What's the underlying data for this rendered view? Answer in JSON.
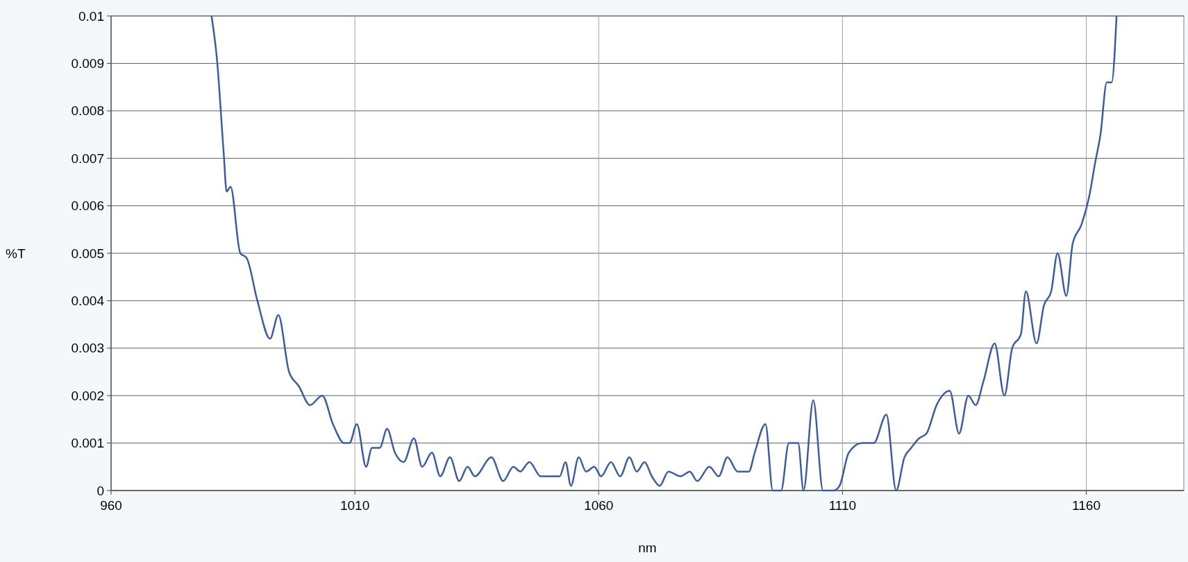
{
  "chart_data": {
    "type": "line",
    "xlabel": "nm",
    "ylabel": "%T",
    "xlim": [
      960,
      1180
    ],
    "xticks": [
      960,
      1010,
      1060,
      1110,
      1160
    ],
    "ylim": [
      0,
      0.01
    ],
    "yticks": [
      0,
      0.001,
      0.002,
      0.003,
      0.004,
      0.005,
      0.006,
      0.007,
      0.008,
      0.009,
      0.01
    ],
    "grid": true,
    "marker": "none",
    "line_style": "solid",
    "series": [
      {
        "color": "#3b5ca3",
        "x": [
          980.6,
          981.7,
          983.1,
          983.7,
          984.5,
          986.5,
          987.8,
          990,
          992.6,
          994.3,
          996.5,
          998.5,
          1000.8,
          1003.3,
          1005.5,
          1007.8,
          1008.9,
          1010.4,
          1012.3,
          1013.5,
          1015.1,
          1016.6,
          1018.2,
          1020,
          1022.1,
          1023.8,
          1025.8,
          1027.5,
          1029.5,
          1031.4,
          1033.1,
          1034.6,
          1038,
          1040.4,
          1042.5,
          1043.9,
          1045.8,
          1048.1,
          1052,
          1053.2,
          1054.3,
          1055.9,
          1057.4,
          1059.1,
          1060.5,
          1062.5,
          1064.4,
          1066.3,
          1067.8,
          1069.4,
          1070.9,
          1072.5,
          1074.3,
          1076.8,
          1078.7,
          1080.2,
          1082.7,
          1084.6,
          1086.4,
          1088.5,
          1090.8,
          1092,
          1094.2,
          1095.7,
          1097.4,
          1099,
          1100.9,
          1102,
          1104,
          1106,
          1108.2,
          1109.4,
          1111.3,
          1114,
          1116.4,
          1119,
          1121,
          1122.7,
          1124.1,
          1125.7,
          1127.2,
          1129.3,
          1132,
          1133.9,
          1135.8,
          1137.3,
          1138.9,
          1141.2,
          1143.2,
          1144.8,
          1146.6,
          1147.6,
          1149.8,
          1151.3,
          1152.8,
          1154.1,
          1155.9,
          1157.2,
          1159,
          1160.6,
          1161.8,
          1162.9,
          1164.2,
          1165.2,
          1166.2
        ],
        "values": [
          0.01,
          0.0091,
          0.0071,
          0.0063,
          0.0064,
          0.005,
          0.0049,
          0.004,
          0.0032,
          0.0037,
          0.0025,
          0.0022,
          0.0018,
          0.002,
          0.0014,
          0.001,
          0.001,
          0.0014,
          0.0005,
          0.0009,
          0.0009,
          0.0013,
          0.0008,
          0.0006,
          0.0011,
          0.0005,
          0.0008,
          0.0003,
          0.0007,
          0.0002,
          0.0005,
          0.0003,
          0.0007,
          0.0002,
          0.0005,
          0.0004,
          0.0006,
          0.0003,
          0.0003,
          0.0006,
          0.0001,
          0.0007,
          0.0004,
          0.0005,
          0.0003,
          0.0006,
          0.0003,
          0.0007,
          0.0004,
          0.0006,
          0.0003,
          0.0001,
          0.0004,
          0.0003,
          0.0004,
          0.0002,
          0.0005,
          0.0003,
          0.0007,
          0.0004,
          0.0004,
          0.0008,
          0.0014,
          0,
          0,
          0.001,
          0.001,
          0,
          0.0019,
          0,
          0,
          0.0001,
          0.0008,
          0.001,
          0.001,
          0.0016,
          0,
          0.0007,
          0.0009,
          0.0011,
          0.0012,
          0.0018,
          0.0021,
          0.0012,
          0.002,
          0.0018,
          0.0023,
          0.0031,
          0.002,
          0.003,
          0.0033,
          0.0042,
          0.0031,
          0.0039,
          0.0042,
          0.005,
          0.0041,
          0.0052,
          0.0056,
          0.0062,
          0.0069,
          0.0075,
          0.0086,
          0.0086,
          0.01
        ]
      }
    ]
  }
}
